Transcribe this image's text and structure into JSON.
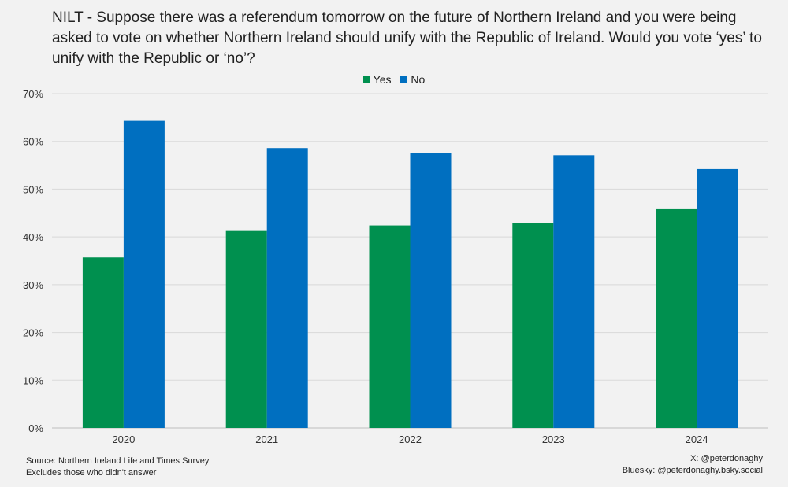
{
  "chart_data": {
    "type": "bar",
    "title": "NILT - Suppose there was a referendum tomorrow on the future of Northern Ireland and you were being asked to vote on whether Northern Ireland should unify with the Republic of Ireland. Would you vote ‘yes’ to unify with the Republic or ‘no’?",
    "categories": [
      "2020",
      "2021",
      "2022",
      "2023",
      "2024"
    ],
    "series": [
      {
        "name": "Yes",
        "color": "#00904f",
        "values": [
          35.7,
          41.4,
          42.4,
          42.9,
          45.8
        ]
      },
      {
        "name": "No",
        "color": "#006fc0",
        "values": [
          64.3,
          58.6,
          57.6,
          57.1,
          54.2
        ]
      }
    ],
    "ylim": [
      0,
      70
    ],
    "yticks": [
      0,
      10,
      20,
      30,
      40,
      50,
      60,
      70
    ],
    "ytick_labels": [
      "0%",
      "10%",
      "20%",
      "30%",
      "40%",
      "50%",
      "60%",
      "70%"
    ],
    "grid": true,
    "legend": "top-center"
  },
  "footer": {
    "source": "Source: Northern Ireland Life and Times Survey",
    "note": "Excludes those who didn't answer",
    "x_handle": "X: @peterdonaghy",
    "bluesky": "Bluesky: @peterdonaghy.bsky.social"
  }
}
